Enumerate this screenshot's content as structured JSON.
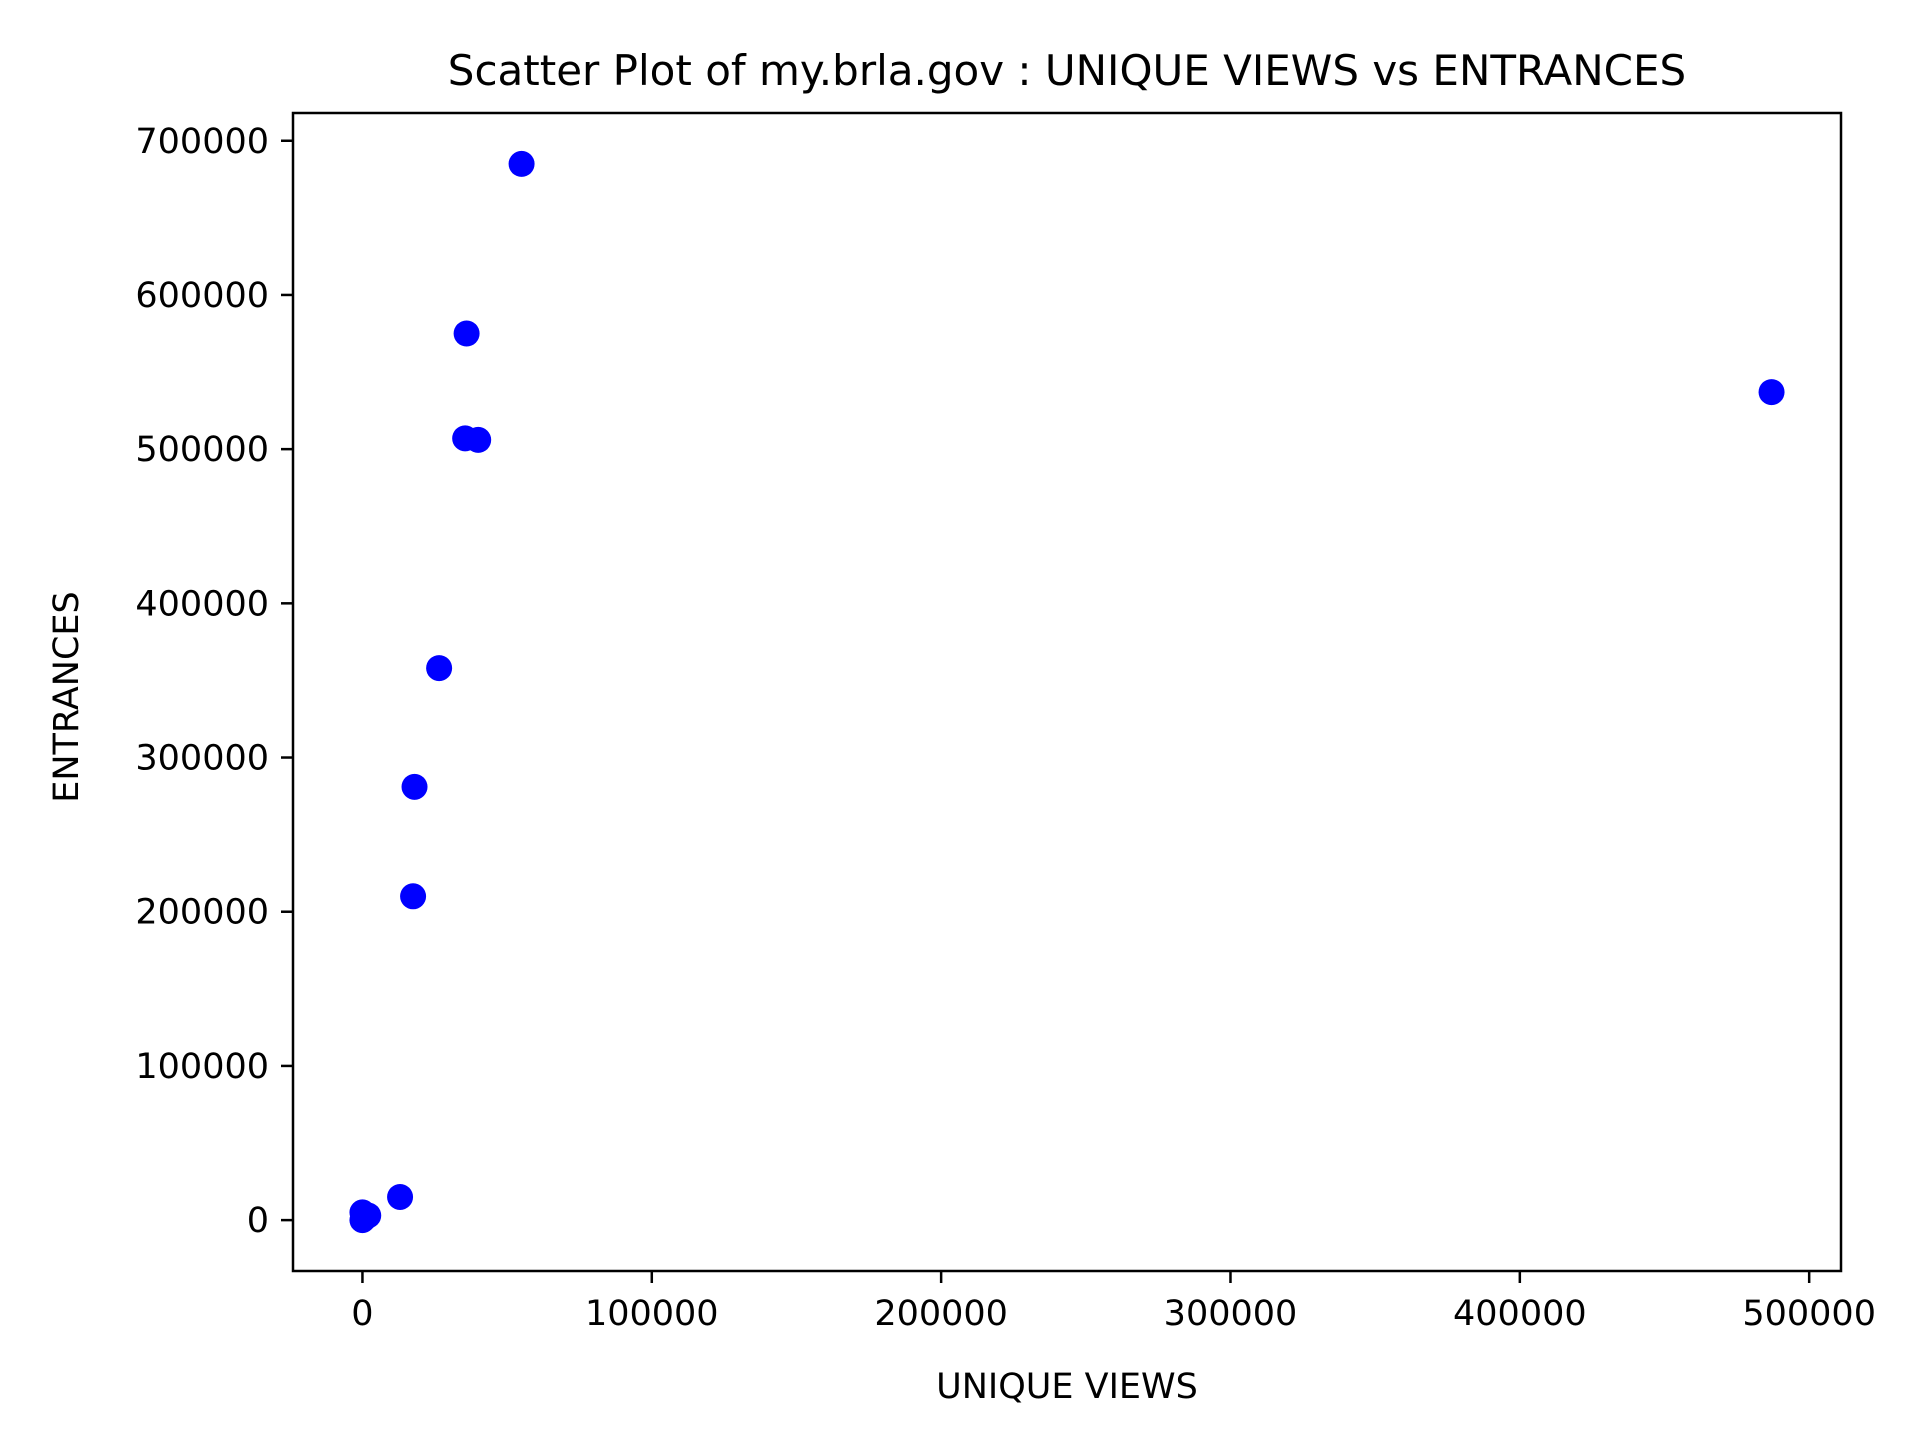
{
  "chart_data": {
    "type": "scatter",
    "title": "Scatter Plot of my.brla.gov : UNIQUE VIEWS vs ENTRANCES",
    "xlabel": "UNIQUE VIEWS",
    "ylabel": "ENTRANCES",
    "xlim": [
      -24000,
      511000
    ],
    "ylim": [
      -33000,
      718000
    ],
    "x_ticks": [
      0,
      100000,
      200000,
      300000,
      400000,
      500000
    ],
    "y_ticks": [
      0,
      100000,
      200000,
      300000,
      400000,
      500000,
      600000,
      700000
    ],
    "x_tick_labels": [
      "0",
      "100000",
      "200000",
      "300000",
      "400000",
      "500000"
    ],
    "y_tick_labels": [
      "0",
      "100000",
      "200000",
      "300000",
      "400000",
      "500000",
      "600000",
      "700000"
    ],
    "grid": false,
    "marker_color": "#0000ff",
    "points": [
      {
        "x": 55000,
        "y": 685000
      },
      {
        "x": 36000,
        "y": 575000
      },
      {
        "x": 487000,
        "y": 537000
      },
      {
        "x": 35500,
        "y": 507000
      },
      {
        "x": 40000,
        "y": 506000
      },
      {
        "x": 26500,
        "y": 358000
      },
      {
        "x": 18000,
        "y": 281000
      },
      {
        "x": 17500,
        "y": 210000
      },
      {
        "x": 13000,
        "y": 15000
      },
      {
        "x": 0,
        "y": 5000
      },
      {
        "x": 2000,
        "y": 3000
      },
      {
        "x": 500,
        "y": 1000
      },
      {
        "x": 0,
        "y": 0
      }
    ]
  }
}
